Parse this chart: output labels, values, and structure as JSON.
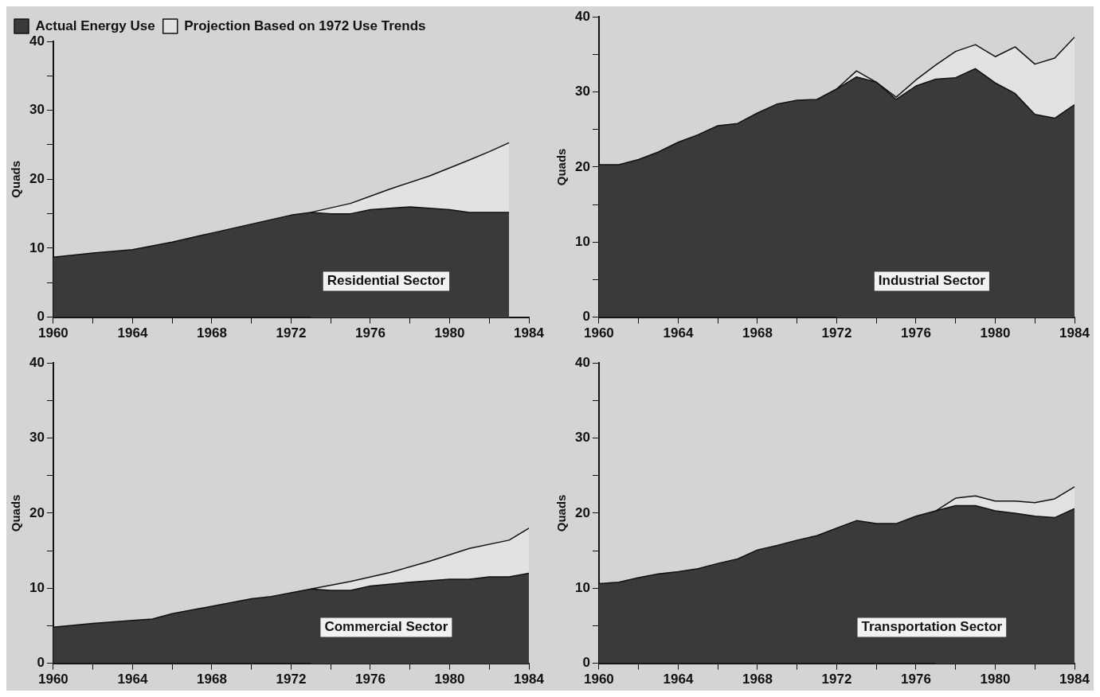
{
  "chart_data": [
    {
      "type": "area",
      "ylabel": "Quads",
      "legend": "top left",
      "annotations": [
        "Residential Sector"
      ],
      "xlim": [
        1960,
        1984
      ],
      "xticks": [
        1960,
        {
          "value": 1962,
          "label": null
        },
        1964,
        {
          "value": 1966,
          "label": null
        },
        1968,
        {
          "value": 1970,
          "label": null
        },
        1972,
        {
          "value": 1974,
          "label": null
        },
        1976,
        {
          "value": 1978,
          "label": null
        },
        1980,
        {
          "value": 1982,
          "label": null
        },
        1984
      ],
      "ylim": [
        0,
        40
      ],
      "yticks": [
        0,
        {
          "value": 5,
          "label": null
        },
        10,
        {
          "value": 15,
          "label": null
        },
        20,
        {
          "value": 25,
          "label": null
        },
        30,
        {
          "value": 35,
          "label": null
        },
        40
      ],
      "series": [
        {
          "name": "Actual Energy Use",
          "color": "#3a3a3a",
          "x": [
            1960,
            1962,
            1964,
            1966,
            1968,
            1970,
            1972,
            1973,
            1974,
            1975,
            1976,
            1978,
            1980,
            1981,
            1983
          ],
          "values": [
            8.7,
            9.3,
            9.8,
            10.9,
            12.2,
            13.5,
            14.8,
            15.2,
            15.0,
            15.0,
            15.6,
            16.0,
            15.6,
            15.2,
            15.2
          ]
        },
        {
          "name": "Projection Based on 1972 Use Trends",
          "color": "#e2e2e2",
          "x": [
            1973,
            1975,
            1977,
            1979,
            1981,
            1982,
            1983
          ],
          "values": [
            15.2,
            16.5,
            18.6,
            20.5,
            22.8,
            24.0,
            25.3
          ]
        }
      ]
    },
    {
      "type": "area",
      "ylabel": "Quads",
      "annotations": [
        "Industrial Sector"
      ],
      "xlim": [
        1960,
        1984
      ],
      "xticks": [
        1960,
        {
          "value": 1962,
          "label": null
        },
        1964,
        {
          "value": 1966,
          "label": null
        },
        1968,
        {
          "value": 1970,
          "label": null
        },
        1972,
        {
          "value": 1974,
          "label": null
        },
        1976,
        {
          "value": 1978,
          "label": null
        },
        1980,
        {
          "value": 1982,
          "label": null
        },
        1984
      ],
      "ylim": [
        0,
        40
      ],
      "yticks": [
        0,
        {
          "value": 5,
          "label": null
        },
        10,
        {
          "value": 15,
          "label": null
        },
        20,
        {
          "value": 25,
          "label": null
        },
        30,
        {
          "value": 35,
          "label": null
        },
        40
      ],
      "series": [
        {
          "color": "#3a3a3a",
          "x": [
            1960,
            1961,
            1962,
            1963,
            1964,
            1965,
            1966,
            1967,
            1968,
            1969,
            1970,
            1971,
            1972,
            1973,
            1974,
            1975,
            1976,
            1977,
            1978,
            1979,
            1980,
            1981,
            1982,
            1983,
            1984
          ],
          "values": [
            20.3,
            20.3,
            21.0,
            22.0,
            23.3,
            24.3,
            25.5,
            25.8,
            27.2,
            28.4,
            28.9,
            29.0,
            30.4,
            32.0,
            31.3,
            29.0,
            30.8,
            31.7,
            31.9,
            33.1,
            31.2,
            29.8,
            27.0,
            26.5,
            28.3
          ]
        },
        {
          "color": "#e2e2e2",
          "x": [
            1972,
            1973,
            1974,
            1975,
            1976,
            1977,
            1978,
            1979,
            1980,
            1981,
            1982,
            1983,
            1984
          ],
          "values": [
            30.4,
            32.8,
            31.3,
            29.3,
            31.6,
            33.6,
            35.4,
            36.3,
            34.7,
            36.0,
            33.7,
            34.5,
            37.3
          ]
        }
      ]
    },
    {
      "type": "area",
      "ylabel": "Quads",
      "annotations": [
        "Commercial Sector"
      ],
      "xlim": [
        1960,
        1984
      ],
      "xticks": [
        1960,
        {
          "value": 1962,
          "label": null
        },
        1964,
        {
          "value": 1966,
          "label": null
        },
        1968,
        {
          "value": 1970,
          "label": null
        },
        1972,
        {
          "value": 1974,
          "label": null
        },
        1976,
        {
          "value": 1978,
          "label": null
        },
        1980,
        {
          "value": 1982,
          "label": null
        },
        1984
      ],
      "ylim": [
        0,
        40
      ],
      "yticks": [
        0,
        {
          "value": 5,
          "label": null
        },
        10,
        {
          "value": 15,
          "label": null
        },
        20,
        {
          "value": 25,
          "label": null
        },
        30,
        {
          "value": 35,
          "label": null
        },
        40
      ],
      "series": [
        {
          "color": "#3a3a3a",
          "x": [
            1960,
            1962,
            1964,
            1965,
            1966,
            1968,
            1970,
            1971,
            1972,
            1973,
            1974,
            1975,
            1976,
            1978,
            1980,
            1981,
            1982,
            1983,
            1984
          ],
          "values": [
            4.8,
            5.3,
            5.7,
            5.9,
            6.6,
            7.6,
            8.6,
            8.9,
            9.4,
            9.9,
            9.7,
            9.7,
            10.3,
            10.8,
            11.2,
            11.2,
            11.5,
            11.5,
            12.0
          ]
        },
        {
          "color": "#e2e2e2",
          "x": [
            1973,
            1975,
            1977,
            1979,
            1981,
            1983,
            1984
          ],
          "values": [
            9.9,
            10.9,
            12.1,
            13.6,
            15.3,
            16.4,
            18.0
          ]
        }
      ]
    },
    {
      "type": "area",
      "ylabel": "Quads",
      "annotations": [
        "Transportation Sector"
      ],
      "xlim": [
        1960,
        1984
      ],
      "xticks": [
        1960,
        {
          "value": 1962,
          "label": null
        },
        1964,
        {
          "value": 1966,
          "label": null
        },
        1968,
        {
          "value": 1970,
          "label": null
        },
        1972,
        {
          "value": 1974,
          "label": null
        },
        1976,
        {
          "value": 1978,
          "label": null
        },
        1980,
        {
          "value": 1982,
          "label": null
        },
        1984
      ],
      "ylim": [
        0,
        40
      ],
      "yticks": [
        0,
        {
          "value": 5,
          "label": null
        },
        10,
        {
          "value": 15,
          "label": null
        },
        20,
        {
          "value": 25,
          "label": null
        },
        30,
        {
          "value": 35,
          "label": null
        },
        40
      ],
      "series": [
        {
          "color": "#3a3a3a",
          "x": [
            1960,
            1961,
            1962,
            1963,
            1964,
            1965,
            1966,
            1967,
            1968,
            1969,
            1970,
            1971,
            1972,
            1973,
            1974,
            1975,
            1976,
            1977,
            1978,
            1979,
            1980,
            1981,
            1982,
            1983,
            1984
          ],
          "values": [
            10.6,
            10.8,
            11.4,
            11.9,
            12.2,
            12.6,
            13.3,
            13.9,
            15.1,
            15.7,
            16.4,
            17.0,
            18.0,
            19.0,
            18.6,
            18.6,
            19.6,
            20.3,
            21.0,
            21.0,
            20.3,
            20.0,
            19.6,
            19.4,
            20.6
          ]
        },
        {
          "color": "#e2e2e2",
          "x": [
            1977,
            1978,
            1979,
            1980,
            1981,
            1982,
            1983,
            1984
          ],
          "values": [
            20.3,
            22.0,
            22.3,
            21.6,
            21.6,
            21.4,
            21.9,
            23.5
          ]
        }
      ]
    }
  ]
}
